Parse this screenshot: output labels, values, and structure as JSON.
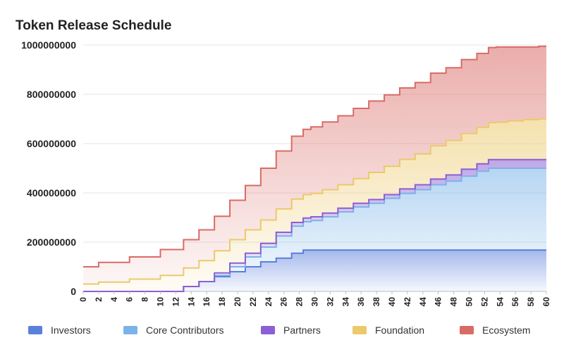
{
  "chart_data": {
    "type": "area",
    "stacked": true,
    "step": true,
    "title": "Token Release Schedule",
    "xlabel": "",
    "ylabel": "",
    "xlim": [
      0,
      60
    ],
    "ylim": [
      0,
      1000000000
    ],
    "y_ticks": [
      "0",
      "200000000",
      "400000000",
      "600000000",
      "800000000",
      "1000000000"
    ],
    "y_tick_values": [
      0,
      200000000,
      400000000,
      600000000,
      800000000,
      1000000000
    ],
    "x_ticks": [
      "0",
      "2",
      "4",
      "6",
      "8",
      "10",
      "12",
      "14",
      "16",
      "18",
      "20",
      "22",
      "24",
      "26",
      "28",
      "30",
      "32",
      "34",
      "36",
      "38",
      "40",
      "42",
      "44",
      "46",
      "48",
      "50",
      "52",
      "54",
      "56",
      "58",
      "60"
    ],
    "x_tick_values": [
      0,
      2,
      4,
      6,
      8,
      10,
      12,
      14,
      16,
      18,
      20,
      22,
      24,
      26,
      28,
      30,
      32,
      34,
      36,
      38,
      40,
      42,
      44,
      46,
      48,
      50,
      52,
      54,
      56,
      58,
      60
    ],
    "grid": true,
    "legend_position": "bottom",
    "x": [
      0,
      4,
      8,
      12,
      14,
      16,
      18,
      20,
      22,
      24,
      26,
      28,
      29,
      30,
      32,
      34,
      36,
      38,
      40,
      42,
      44,
      46,
      48,
      50,
      52,
      53,
      54,
      56,
      58,
      60
    ],
    "series": [
      {
        "name": "Investors",
        "color": "#5b7fdc",
        "values": [
          0,
          0,
          0,
          0,
          20000000,
          40000000,
          60000000,
          80000000,
          100000000,
          120000000,
          135000000,
          155000000,
          168000000,
          168000000,
          168000000,
          168000000,
          168000000,
          168000000,
          168000000,
          168000000,
          168000000,
          168000000,
          168000000,
          168000000,
          168000000,
          168000000,
          168000000,
          168000000,
          168000000,
          168000000
        ]
      },
      {
        "name": "Core Contributors",
        "color": "#7bb3e8",
        "values": [
          0,
          0,
          0,
          0,
          0,
          0,
          5000000,
          20000000,
          40000000,
          60000000,
          90000000,
          110000000,
          115000000,
          120000000,
          135000000,
          155000000,
          175000000,
          190000000,
          210000000,
          230000000,
          245000000,
          265000000,
          280000000,
          300000000,
          320000000,
          332000000,
          332000000,
          332000000,
          332000000,
          332000000
        ]
      },
      {
        "name": "Partners",
        "color": "#8c5fd4",
        "values": [
          0,
          0,
          0,
          0,
          0,
          0,
          10000000,
          15000000,
          15000000,
          15000000,
          15000000,
          15000000,
          15000000,
          15000000,
          15000000,
          15000000,
          15000000,
          15000000,
          15000000,
          18000000,
          20000000,
          23000000,
          25000000,
          28000000,
          30000000,
          35000000,
          35000000,
          35000000,
          35000000,
          35000000
        ]
      },
      {
        "name": "Foundation",
        "color": "#ecc96b",
        "values": [
          30000000,
          38000000,
          50000000,
          65000000,
          75000000,
          85000000,
          90000000,
          95000000,
          95000000,
          95000000,
          95000000,
          95000000,
          95000000,
          95000000,
          95000000,
          95000000,
          100000000,
          110000000,
          115000000,
          120000000,
          125000000,
          135000000,
          140000000,
          145000000,
          148000000,
          150000000,
          152000000,
          157000000,
          162000000,
          165000000
        ]
      },
      {
        "name": "Ecosystem",
        "color": "#d96b66",
        "values": [
          70000000,
          80000000,
          90000000,
          105000000,
          115000000,
          125000000,
          140000000,
          160000000,
          180000000,
          210000000,
          235000000,
          255000000,
          265000000,
          270000000,
          275000000,
          280000000,
          285000000,
          290000000,
          290000000,
          290000000,
          290000000,
          295000000,
          295000000,
          300000000,
          300000000,
          305000000,
          305000000,
          300000000,
          295000000,
          295000000
        ]
      }
    ]
  }
}
